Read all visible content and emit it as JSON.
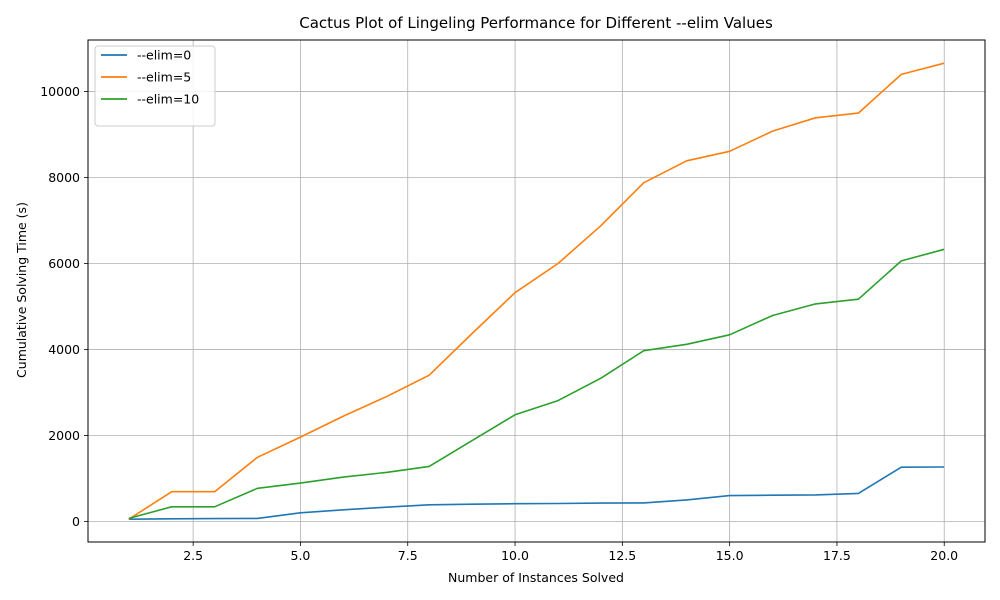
{
  "chart_data": {
    "type": "line",
    "title": "Cactus Plot of Lingeling Performance for Different --elim Values",
    "xlabel": "Number of Instances Solved",
    "ylabel": "Cumulative Solving Time (s)",
    "xlim": [
      0.05,
      20.95
    ],
    "ylim": [
      -480,
      11200
    ],
    "xticks": [
      2.5,
      5.0,
      7.5,
      10.0,
      12.5,
      15.0,
      17.5,
      20.0
    ],
    "xtick_labels": [
      "2.5",
      "5.0",
      "7.5",
      "10.0",
      "12.5",
      "15.0",
      "17.5",
      "20.0"
    ],
    "yticks": [
      0,
      2000,
      4000,
      6000,
      8000,
      10000
    ],
    "ytick_labels": [
      "0",
      "2000",
      "4000",
      "6000",
      "8000",
      "10000"
    ],
    "grid": true,
    "legend_position": "top-left",
    "x": [
      1,
      2,
      3,
      4,
      5,
      6,
      7,
      8,
      9,
      10,
      11,
      12,
      13,
      14,
      15,
      16,
      17,
      18,
      19,
      20
    ],
    "series": [
      {
        "name": "--elim=0",
        "color": "#1f77b4",
        "values": [
          50,
          60,
          65,
          70,
          200,
          270,
          330,
          385,
          400,
          410,
          415,
          425,
          430,
          500,
          600,
          610,
          615,
          650,
          1260,
          1265
        ]
      },
      {
        "name": "--elim=5",
        "color": "#ff7f0e",
        "values": [
          50,
          690,
          690,
          1490,
          1960,
          2450,
          2900,
          3400,
          4370,
          5320,
          6000,
          6880,
          7880,
          8390,
          8610,
          9080,
          9390,
          9500,
          10400,
          10660
        ]
      },
      {
        "name": "--elim=10",
        "color": "#2ca02c",
        "values": [
          70,
          340,
          340,
          770,
          890,
          1030,
          1140,
          1280,
          1880,
          2480,
          2810,
          3330,
          3970,
          4120,
          4340,
          4790,
          5060,
          5170,
          6060,
          6330
        ]
      }
    ]
  }
}
